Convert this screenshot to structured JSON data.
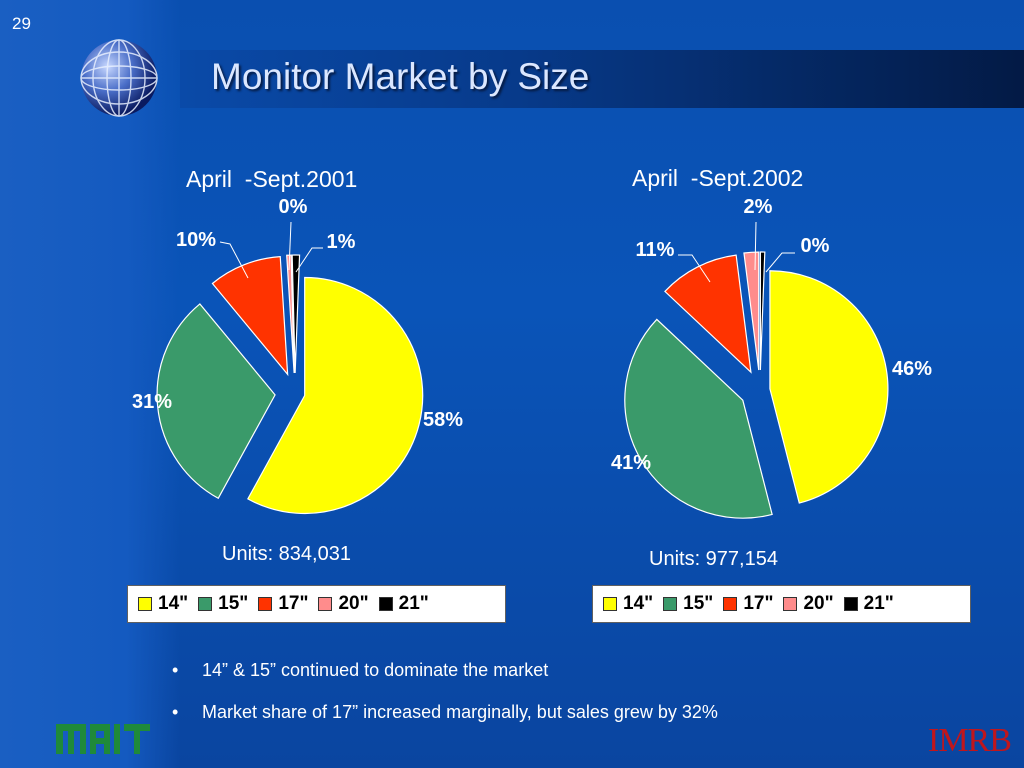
{
  "slide": {
    "number": "29",
    "title": "Monitor Market by Size",
    "bullets": [
      "14” & 15” continued to dominate the market",
      "Market share of 17” increased marginally, but sales grew by 32%"
    ],
    "logos": {
      "left": "MAIT",
      "right": "IMRB"
    }
  },
  "colors": {
    "14\"": "#ffff00",
    "15\"": "#3a9a6a",
    "17\"": "#ff3300",
    "20\"": "#ff8c8c",
    "21\"": "#000000"
  },
  "chart_data": [
    {
      "type": "pie",
      "title": "April  -Sept.2001",
      "units_label": "Units: 834,031",
      "categories": [
        "14\"",
        "15\"",
        "17\"",
        "20\"",
        "21\""
      ],
      "values": [
        58,
        31,
        10,
        0,
        1
      ],
      "labels": [
        "58%",
        "31%",
        "10%",
        "0%",
        "1%"
      ],
      "legend": [
        "14\"",
        "15\"",
        "17\"",
        "20\"",
        "21\""
      ],
      "legend_placement": "bottom"
    },
    {
      "type": "pie",
      "title": "April  -Sept.2002",
      "units_label": "Units: 977,154",
      "categories": [
        "14\"",
        "15\"",
        "17\"",
        "20\"",
        "21\""
      ],
      "values": [
        46,
        41,
        11,
        2,
        0
      ],
      "labels": [
        "46%",
        "41%",
        "11%",
        "2%",
        "0%"
      ],
      "legend": [
        "14\"",
        "15\"",
        "17\"",
        "20\"",
        "21\""
      ],
      "legend_placement": "bottom"
    }
  ]
}
